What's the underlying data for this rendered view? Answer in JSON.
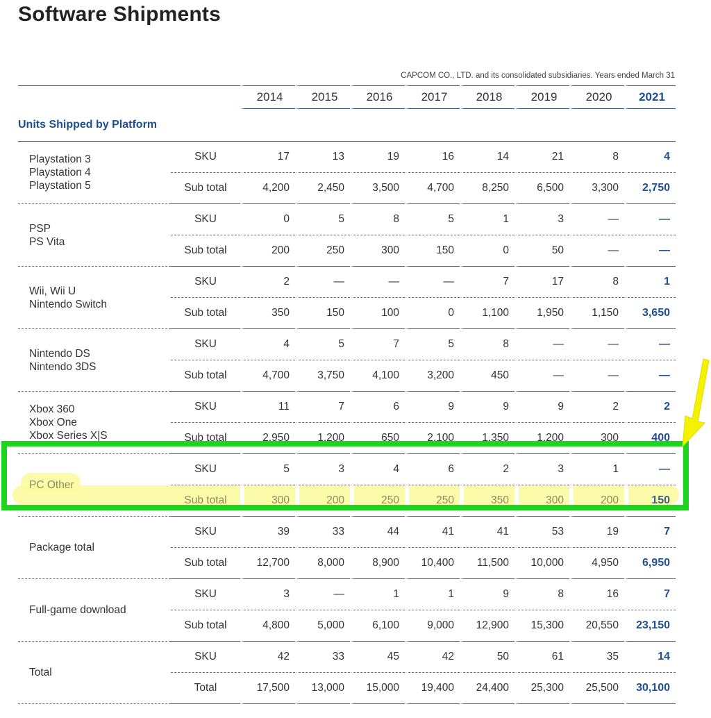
{
  "title": "Software Shipments",
  "subtitle": "CAPCOM CO., LTD. and its consolidated subsidiaries. Years ended March 31",
  "years": [
    "2014",
    "2015",
    "2016",
    "2017",
    "2018",
    "2019",
    "2020",
    "2021"
  ],
  "section_title": "Units Shipped by Platform",
  "groups": [
    {
      "label_lines": [
        "Playstation 3",
        "Playstation 4",
        "Playstation 5"
      ],
      "rows": [
        {
          "type": "SKU",
          "values": [
            "17",
            "13",
            "19",
            "16",
            "14",
            "21",
            "8",
            "4"
          ]
        },
        {
          "type": "Sub total",
          "values": [
            "4,200",
            "2,450",
            "3,500",
            "4,700",
            "8,250",
            "6,500",
            "3,300",
            "2,750"
          ]
        }
      ]
    },
    {
      "label_lines": [
        "PSP",
        "PS Vita"
      ],
      "rows": [
        {
          "type": "SKU",
          "values": [
            "0",
            "5",
            "8",
            "5",
            "1",
            "3",
            "—",
            "—"
          ]
        },
        {
          "type": "Sub total",
          "values": [
            "200",
            "250",
            "300",
            "150",
            "0",
            "50",
            "—",
            "—"
          ]
        }
      ]
    },
    {
      "label_lines": [
        "Wii, Wii U",
        "Nintendo Switch"
      ],
      "rows": [
        {
          "type": "SKU",
          "values": [
            "2",
            "—",
            "—",
            "—",
            "7",
            "17",
            "8",
            "1"
          ]
        },
        {
          "type": "Sub total",
          "values": [
            "350",
            "150",
            "100",
            "0",
            "1,100",
            "1,950",
            "1,150",
            "3,650"
          ]
        }
      ]
    },
    {
      "label_lines": [
        "Nintendo DS",
        "Nintendo 3DS"
      ],
      "rows": [
        {
          "type": "SKU",
          "values": [
            "4",
            "5",
            "7",
            "5",
            "8",
            "—",
            "—",
            "—"
          ]
        },
        {
          "type": "Sub total",
          "values": [
            "4,700",
            "3,750",
            "4,100",
            "3,200",
            "450",
            "—",
            "—",
            "—"
          ]
        }
      ]
    },
    {
      "label_lines": [
        "Xbox 360",
        "Xbox One",
        "Xbox Series X|S"
      ],
      "rows": [
        {
          "type": "SKU",
          "values": [
            "11",
            "7",
            "6",
            "9",
            "9",
            "9",
            "2",
            "2"
          ]
        },
        {
          "type": "Sub total",
          "values": [
            "2,950",
            "1,200",
            "650",
            "2,100",
            "1,350",
            "1,200",
            "300",
            "400"
          ]
        }
      ]
    },
    {
      "label_lines": [
        "PC Other"
      ],
      "highlighted": true,
      "rows": [
        {
          "type": "SKU",
          "values": [
            "5",
            "3",
            "4",
            "6",
            "2",
            "3",
            "1",
            "—"
          ]
        },
        {
          "type": "Sub total",
          "values": [
            "300",
            "200",
            "250",
            "250",
            "350",
            "300",
            "200",
            "150"
          ]
        }
      ]
    },
    {
      "label_lines": [
        "Package total"
      ],
      "rows": [
        {
          "type": "SKU",
          "values": [
            "39",
            "33",
            "44",
            "41",
            "41",
            "53",
            "19",
            "7"
          ]
        },
        {
          "type": "Sub total",
          "values": [
            "12,700",
            "8,000",
            "8,900",
            "10,400",
            "11,500",
            "10,000",
            "4,950",
            "6,950"
          ]
        }
      ]
    },
    {
      "label_lines": [
        "Full-game download"
      ],
      "rows": [
        {
          "type": "SKU",
          "values": [
            "3",
            "—",
            "1",
            "1",
            "9",
            "8",
            "16",
            "7"
          ]
        },
        {
          "type": "Sub total",
          "values": [
            "4,800",
            "5,000",
            "6,100",
            "9,000",
            "12,900",
            "15,300",
            "20,550",
            "23,150"
          ]
        }
      ]
    },
    {
      "label_lines": [
        "Total"
      ],
      "rows": [
        {
          "type": "SKU",
          "values": [
            "42",
            "33",
            "45",
            "42",
            "50",
            "61",
            "35",
            "14"
          ]
        },
        {
          "type": "Total",
          "values": [
            "17,500",
            "13,000",
            "15,000",
            "19,400",
            "24,400",
            "25,300",
            "25,500",
            "30,100"
          ]
        }
      ]
    }
  ],
  "annotations": {
    "box_color": "#1ed51e",
    "highlight_color": "#fbfa9b",
    "arrow_color": "#f5f200",
    "arrow_icon": "arrow-down-left-icon"
  }
}
